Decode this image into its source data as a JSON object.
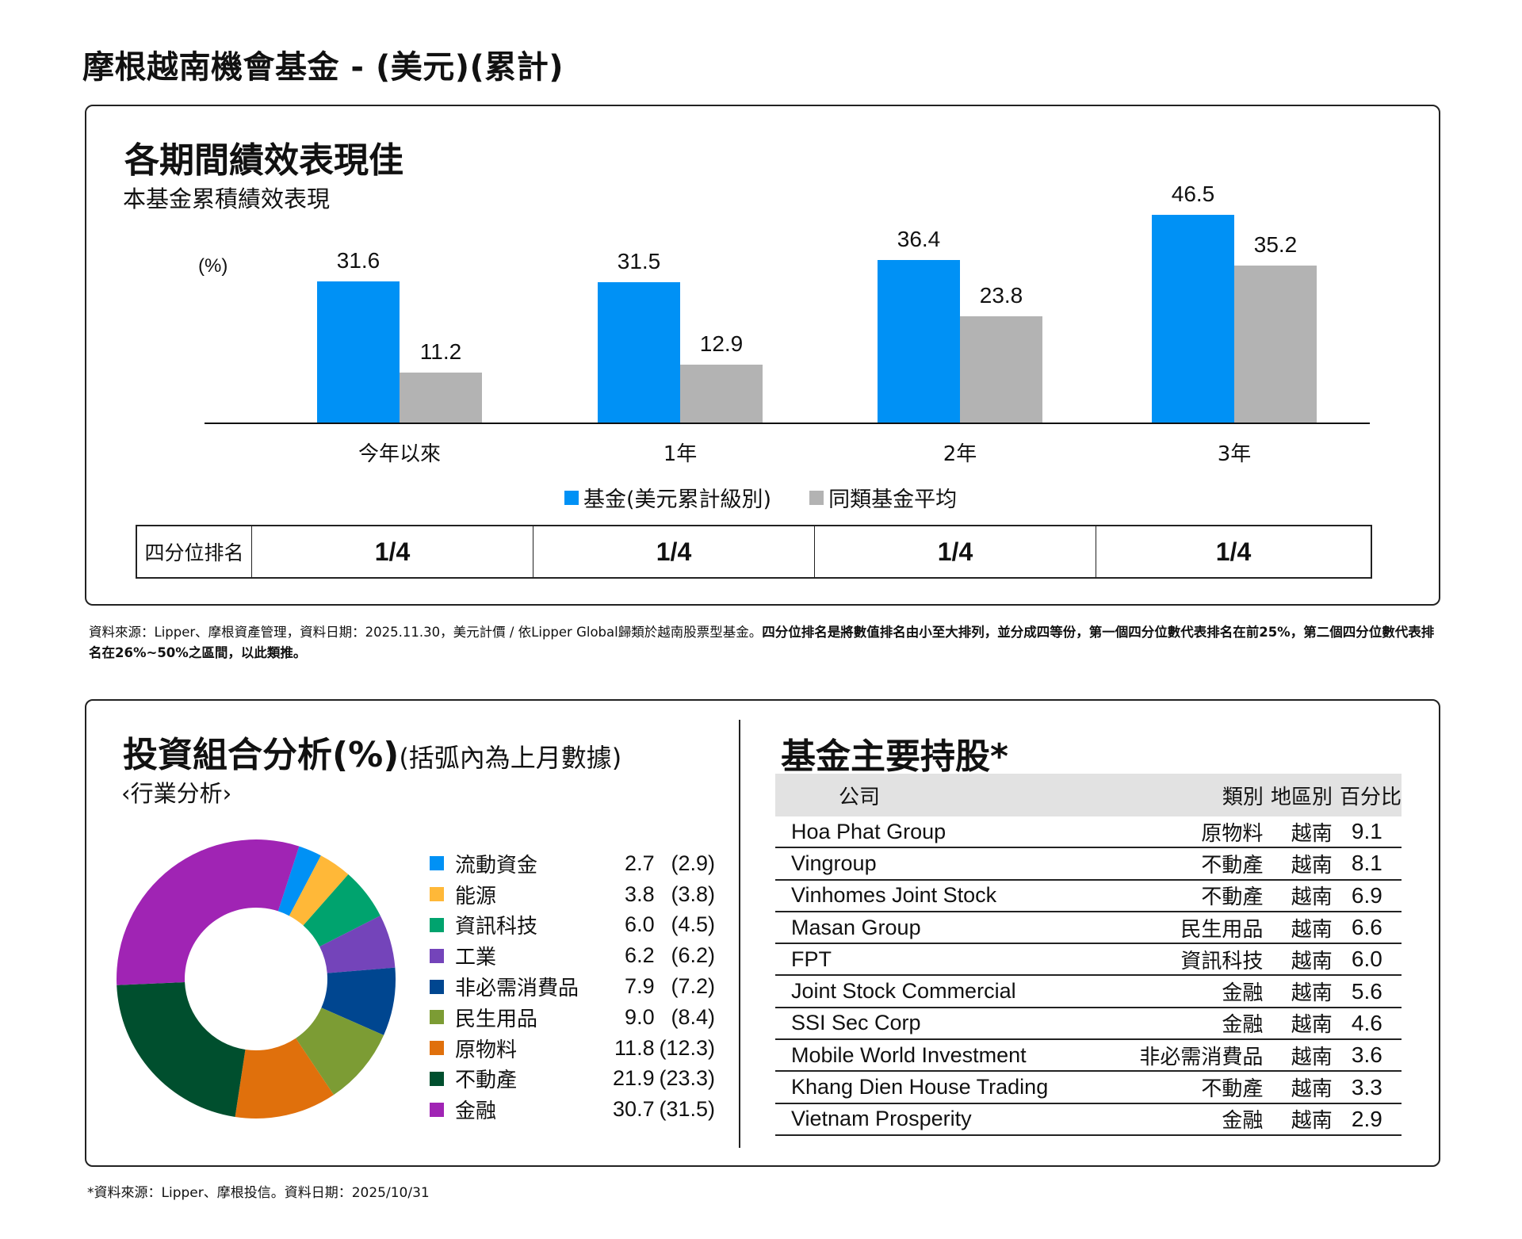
{
  "page": {
    "title": "摩根越南機會基金 - (美元)(累計)"
  },
  "performance": {
    "title": "各期間績效表現佳",
    "subtitle": "本基金累積績效表現",
    "unit_label": "(%)",
    "legend": [
      {
        "label": "基金(美元累計級別)",
        "color": "#0091F5"
      },
      {
        "label": "同類基金平均",
        "color": "#B3B3B3"
      }
    ],
    "quartile": {
      "row_label": "四分位排名",
      "values": [
        "1/4",
        "1/4",
        "1/4",
        "1/4"
      ]
    },
    "note_normal": "資料來源：Lipper、摩根資產管理，資料日期：2025.11.30，美元計價 / 依Lipper Global歸類於越南股票型基金。",
    "note_bold": "四分位排名是將數值排名由小至大排列，並分成四等份，第一個四分位數代表排名在前25%，第二個四分位數代表排名在26%~50%之區間，以此類推。"
  },
  "chart_data": [
    {
      "type": "bar",
      "title": "各期間績效表現佳",
      "subtitle": "本基金累積績效表現",
      "xlabel": "",
      "ylabel": "(%)",
      "categories": [
        "今年以來",
        "1年",
        "2年",
        "3年"
      ],
      "series": [
        {
          "name": "基金(美元累計級別)",
          "color": "#0091F5",
          "values": [
            31.6,
            31.5,
            36.4,
            46.5
          ]
        },
        {
          "name": "同類基金平均",
          "color": "#B3B3B3",
          "values": [
            11.2,
            12.9,
            23.8,
            35.2
          ]
        }
      ],
      "grid": false,
      "legend_position": "bottom",
      "ylim": [
        0,
        50
      ]
    },
    {
      "type": "pie",
      "title": "投資組合分析(%)(括弧內為上月數據)",
      "subtitle": "‹行業分析›",
      "donut": true,
      "categories": [
        "流動資金",
        "能源",
        "資訊科技",
        "工業",
        "非必需消費品",
        "民生用品",
        "原物料",
        "不動產",
        "金融"
      ],
      "values": [
        2.7,
        3.8,
        6.0,
        6.2,
        7.9,
        9.0,
        11.8,
        21.9,
        30.7
      ],
      "previous_values": [
        2.9,
        3.8,
        4.5,
        6.2,
        7.2,
        8.4,
        12.3,
        23.3,
        31.5
      ],
      "colors": [
        "#0091F5",
        "#FFB838",
        "#00A36E",
        "#7444BA",
        "#004690",
        "#7C9C34",
        "#E0700C",
        "#004F2E",
        "#A024B4"
      ],
      "legend_position": "right"
    }
  ],
  "portfolio": {
    "title": "投資組合分析(%)",
    "title_suffix": "(括弧內為上月數據)",
    "subtitle": "‹行業分析›",
    "sectors": [
      {
        "name": "流動資金",
        "value": "2.7",
        "prev": "(2.9)",
        "color": "#0091F5"
      },
      {
        "name": "能源",
        "value": "3.8",
        "prev": "(3.8)",
        "color": "#FFB838"
      },
      {
        "name": "資訊科技",
        "value": "6.0",
        "prev": "(4.5)",
        "color": "#00A36E"
      },
      {
        "name": "工業",
        "value": "6.2",
        "prev": "(6.2)",
        "color": "#7444BA"
      },
      {
        "name": "非必需消費品",
        "value": "7.9",
        "prev": "(7.2)",
        "color": "#004690"
      },
      {
        "name": "民生用品",
        "value": "9.0",
        "prev": "(8.4)",
        "color": "#7C9C34"
      },
      {
        "name": "原物料",
        "value": "11.8",
        "prev": "(12.3)",
        "color": "#E0700C"
      },
      {
        "name": "不動產",
        "value": "21.9",
        "prev": "(23.3)",
        "color": "#004F2E"
      },
      {
        "name": "金融",
        "value": "30.7",
        "prev": "(31.5)",
        "color": "#A024B4"
      }
    ]
  },
  "holdings": {
    "title": "基金主要持股*",
    "headers": {
      "company": "公司",
      "category": "類別",
      "region": "地區別",
      "percent": "百分比"
    },
    "rows": [
      {
        "company": "Hoa Phat Group",
        "category": "原物料",
        "region": "越南",
        "percent": "9.1"
      },
      {
        "company": "Vingroup",
        "category": "不動產",
        "region": "越南",
        "percent": "8.1"
      },
      {
        "company": "Vinhomes Joint Stock",
        "category": "不動產",
        "region": "越南",
        "percent": "6.9"
      },
      {
        "company": "Masan Group",
        "category": "民生用品",
        "region": "越南",
        "percent": "6.6"
      },
      {
        "company": "FPT",
        "category": "資訊科技",
        "region": "越南",
        "percent": "6.0"
      },
      {
        "company": "Joint Stock Commercial",
        "category": "金融",
        "region": "越南",
        "percent": "5.6"
      },
      {
        "company": "SSI Sec Corp",
        "category": "金融",
        "region": "越南",
        "percent": "4.6"
      },
      {
        "company": "Mobile World Investment",
        "category": "非必需消費品",
        "region": "越南",
        "percent": "3.6"
      },
      {
        "company": "Khang Dien House Trading",
        "category": "不動產",
        "region": "越南",
        "percent": "3.3"
      },
      {
        "company": "Vietnam Prosperity",
        "category": "金融",
        "region": "越南",
        "percent": "2.9"
      }
    ]
  },
  "footnote": "*資料來源：Lipper、摩根投信。資料日期：2025/10/31"
}
